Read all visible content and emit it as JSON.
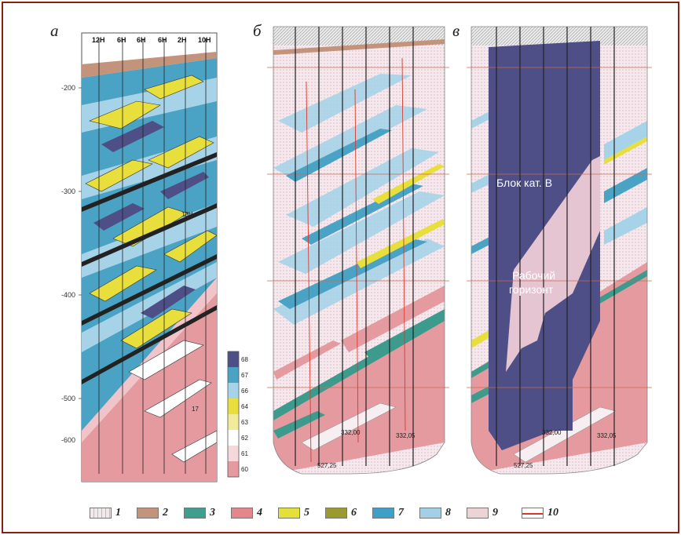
{
  "panels": [
    {
      "letter": "а"
    },
    {
      "letter": "б"
    },
    {
      "letter": "в"
    }
  ],
  "panel_a": {
    "well_labels": [
      "12Н",
      "6Н",
      "6Н",
      "6Н",
      "2Н",
      "10Н"
    ],
    "depth_labels": [
      "-200",
      "-300",
      "-400",
      "-500",
      "-600"
    ],
    "scale_labels": [
      "68",
      "67",
      "66",
      "64",
      "63",
      "62",
      "61",
      "60"
    ],
    "annotations": [
      "13Н",
      "17"
    ]
  },
  "panel_b": {
    "annotations": [
      "332,00",
      "332,05",
      "527,25"
    ]
  },
  "panel_c": {
    "label_block": "Блок кат. В",
    "label_horizon_1": "Рабочий",
    "label_horizon_2": "горизонт",
    "annotations": [
      "332,00",
      "332,05",
      "527,25"
    ]
  },
  "colors": {
    "frame": "#8a1f14",
    "blue_dark": "#4d4f86",
    "pink_light": "#e6c5d2",
    "lithology_white": "#f7eef1",
    "lithology_pink": "#e59a9f",
    "lithology_yellow": "#e8df3c",
    "lithology_teal": "#3c9b8c",
    "lithology_blue": "#4aa3c4",
    "lithology_lightblue": "#a7d3e8"
  },
  "legend": [
    {
      "num": "1",
      "color": "#f2eaea",
      "icon": "hatched-swatch"
    },
    {
      "num": "2",
      "color": "#c4937b",
      "icon": "swatch"
    },
    {
      "num": "3",
      "color": "#3f9e8e",
      "icon": "swatch"
    },
    {
      "num": "4",
      "color": "#e3878d",
      "icon": "swatch"
    },
    {
      "num": "5",
      "color": "#e5df3a",
      "icon": "swatch"
    },
    {
      "num": "6",
      "color": "#9b9a2e",
      "icon": "swatch"
    },
    {
      "num": "7",
      "color": "#3f9fc6",
      "icon": "swatch"
    },
    {
      "num": "8",
      "color": "#a3d0e6",
      "icon": "swatch"
    },
    {
      "num": "9",
      "color": "#ecd3d6",
      "icon": "swatch"
    },
    {
      "num": "10",
      "color": "#d9392a",
      "icon": "red-line"
    }
  ]
}
